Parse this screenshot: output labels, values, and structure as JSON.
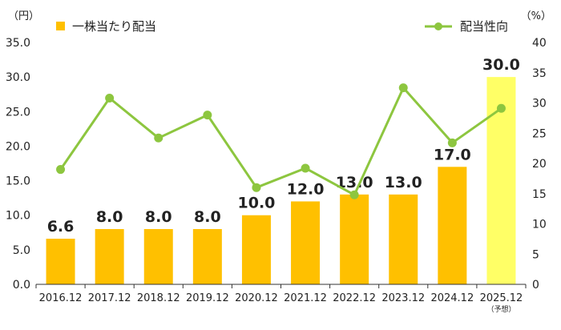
{
  "chart_data": {
    "type": "bar",
    "categories": [
      "2016.12",
      "2017.12",
      "2018.12",
      "2019.12",
      "2020.12",
      "2021.12",
      "2022.12",
      "2023.12",
      "2024.12",
      "2025.12"
    ],
    "category_notes": [
      "",
      "",
      "",
      "",
      "",
      "",
      "",
      "",
      "",
      "（予想）"
    ],
    "series": [
      {
        "name": "一株当たり配当",
        "kind": "bar",
        "axis": "left",
        "values": [
          6.6,
          8.0,
          8.0,
          8.0,
          10.0,
          12.0,
          13.0,
          13.0,
          17.0,
          30.0
        ],
        "labels": [
          "6.6",
          "8.0",
          "8.0",
          "8.0",
          "10.0",
          "12.0",
          "13.0",
          "13.0",
          "17.0",
          "30.0"
        ],
        "color": "#FFC000",
        "forecast_color": "#FFFF66"
      },
      {
        "name": "配当性向",
        "kind": "line",
        "axis": "right",
        "values": [
          19.0,
          30.8,
          24.2,
          28.0,
          16.0,
          19.2,
          14.8,
          32.5,
          23.4,
          29.1
        ],
        "color": "#8DC63F"
      }
    ],
    "y_left": {
      "unit": "（円）",
      "range": [
        0,
        35
      ],
      "ticks": [
        0,
        5,
        10,
        15,
        20,
        25,
        30,
        35
      ],
      "tick_labels": [
        "0.0",
        "5.0",
        "10.0",
        "15.0",
        "20.0",
        "25.0",
        "30.0",
        "35.0"
      ]
    },
    "y_right": {
      "unit": "（%）",
      "range": [
        0,
        40
      ],
      "ticks": [
        0,
        5,
        10,
        15,
        20,
        25,
        30,
        35,
        40
      ],
      "tick_labels": [
        "0",
        "5",
        "10",
        "15",
        "20",
        "25",
        "30",
        "35",
        "40"
      ]
    },
    "grid": false,
    "legend": "top"
  }
}
